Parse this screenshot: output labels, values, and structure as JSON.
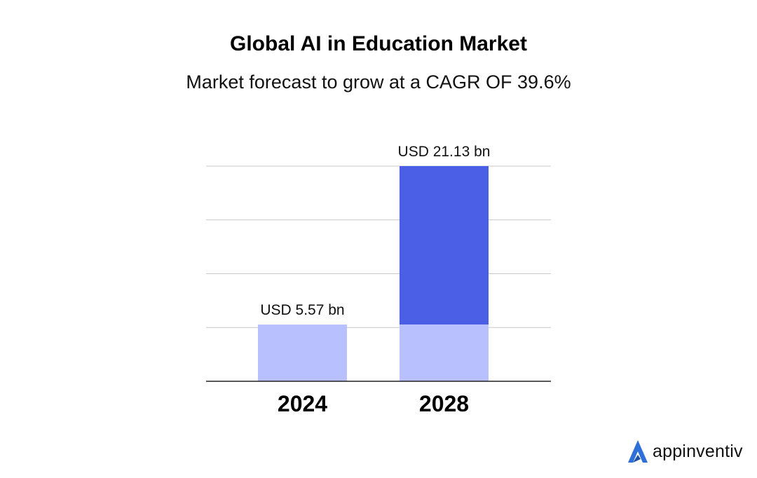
{
  "header": {
    "title": "Global AI in Education Market",
    "subtitle": "Market forecast to grow at a CAGR OF 39.6%"
  },
  "chart_data": {
    "type": "bar",
    "categories": [
      "2024",
      "2028"
    ],
    "values": [
      5.57,
      21.13
    ],
    "data_labels": [
      "USD 5.57 bn",
      "USD 21.13 bn"
    ],
    "ylim": [
      0,
      21.13
    ],
    "grid": true,
    "colors": {
      "base": "#b8c0fe",
      "growth": "#4a5fe6",
      "grid": "#c8c8c8",
      "axis": "#222222"
    }
  },
  "logo": {
    "text": "appinventiv",
    "icon": "appinventiv-logo-icon",
    "color": "#2f6fd8"
  }
}
